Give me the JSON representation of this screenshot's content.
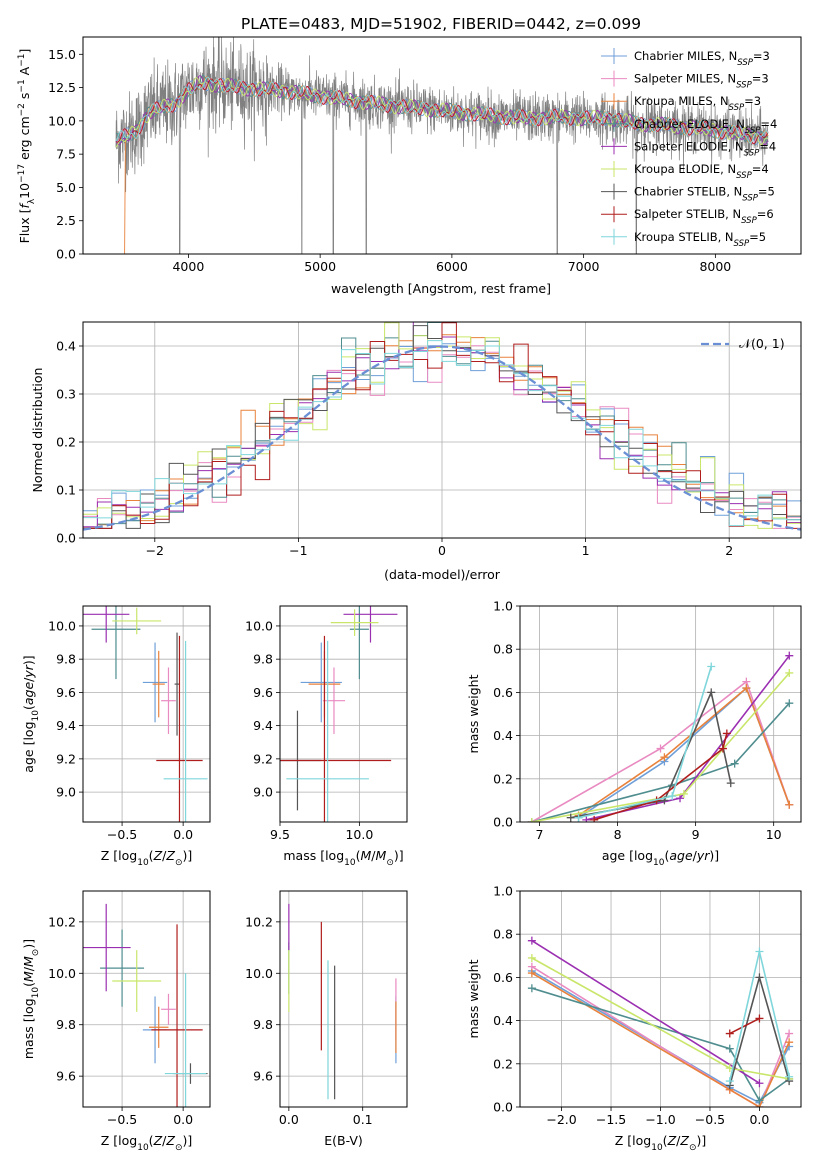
{
  "title": "PLATE=0483, MJD=51902, FIBERID=0442, z=0.099",
  "colors": [
    "#6f9fd8",
    "#e98ac1",
    "#e8823c",
    "#4f8d8f",
    "#9b2fb1",
    "#c9e66a",
    "#555555",
    "#b01d1d",
    "#7fd6db"
  ],
  "legend": [
    {
      "label": "Chabrier MILES, N_SSP=3"
    },
    {
      "label": "Salpeter MILES, N_SSP=3"
    },
    {
      "label": "Kroupa MILES, N_SSP=3"
    },
    {
      "label": "Chabrier ELODIE, N_SSP=4"
    },
    {
      "label": "Salpeter ELODIE, N_SSP=4"
    },
    {
      "label": "Kroupa ELODIE, N_SSP=4"
    },
    {
      "label": "Chabrier STELIB, N_SSP=5"
    },
    {
      "label": "Salpeter STELIB, N_SSP=6"
    },
    {
      "label": "Kroupa STELIB, N_SSP=5"
    }
  ],
  "gauss_label": "𝒩(0, 1)",
  "chart_data": [
    {
      "type": "line",
      "xlabel": "wavelength [Angstrom, rest frame]",
      "ylabel": "Flux [f_λ 10^-17 erg cm^-2 s^-1 A^-1]",
      "xlim": [
        3200,
        8650
      ],
      "ylim": [
        0,
        16.3
      ],
      "xticks": [
        4000,
        5000,
        6000,
        7000,
        8000
      ],
      "yticks": [
        0.0,
        2.5,
        5.0,
        7.5,
        10.0,
        12.5,
        15.0
      ],
      "continuum": [
        [
          3450,
          8.5
        ],
        [
          3600,
          9.2
        ],
        [
          3700,
          10.6
        ],
        [
          3800,
          11.0
        ],
        [
          3900,
          11.3
        ],
        [
          4000,
          12.3
        ],
        [
          4100,
          12.9
        ],
        [
          4300,
          12.6
        ],
        [
          4500,
          12.4
        ],
        [
          4700,
          12.3
        ],
        [
          4900,
          12.0
        ],
        [
          5200,
          11.6
        ],
        [
          5500,
          11.2
        ],
        [
          5800,
          10.9
        ],
        [
          6100,
          10.6
        ],
        [
          6400,
          10.3
        ],
        [
          6600,
          10.2
        ],
        [
          6800,
          10.3
        ],
        [
          7000,
          10.2
        ],
        [
          7200,
          10.2
        ],
        [
          7400,
          9.8
        ],
        [
          7600,
          9.7
        ],
        [
          7800,
          9.5
        ],
        [
          8000,
          9.3
        ],
        [
          8200,
          9.0
        ],
        [
          8400,
          8.7
        ]
      ],
      "absorption_lines": [
        3934,
        4861,
        5100,
        5350,
        6800,
        7400
      ]
    },
    {
      "type": "histogram",
      "xlabel": "(data-model)/error",
      "ylabel": "Normed distribution",
      "xlim": [
        -2.5,
        2.5
      ],
      "ylim": [
        0,
        0.45
      ],
      "xticks": [
        -2,
        -1,
        0,
        1,
        2
      ],
      "yticks": [
        0.0,
        0.1,
        0.2,
        0.3,
        0.4
      ],
      "bin_width": 0.1,
      "gaussian": {
        "mean": 0,
        "sigma": 1
      }
    },
    {
      "type": "errorbar",
      "xlabel": "Z [log10(Z/Z⊙)]",
      "ylabel": "age  [log10(age/yr)]",
      "xlim": [
        -0.82,
        0.22
      ],
      "ylim": [
        8.82,
        10.12
      ],
      "xticks": [
        -0.5,
        0.0
      ],
      "xticklabels": [
        "−0.5",
        "0.0"
      ],
      "yticks": [
        9.0,
        9.2,
        9.4,
        9.6,
        9.8,
        10.0
      ],
      "points": [
        {
          "x": -0.23,
          "xerr": 0.1,
          "y": 9.66,
          "yerr": 0.24
        },
        {
          "x": -0.12,
          "xerr": 0.06,
          "y": 9.55,
          "yerr": 0.2
        },
        {
          "x": -0.2,
          "xerr": 0.05,
          "y": 9.65,
          "yerr": 0.2
        },
        {
          "x": -0.55,
          "xerr": 0.2,
          "y": 9.98,
          "yerr": 0.3
        },
        {
          "x": -0.63,
          "xerr": 0.19,
          "y": 10.07,
          "yerr": 0.17
        },
        {
          "x": -0.38,
          "xerr": 0.2,
          "y": 10.03,
          "yerr": 0.08
        },
        {
          "x": -0.05,
          "xerr": 0.02,
          "y": 9.65,
          "yerr": 0.31
        },
        {
          "x": -0.03,
          "xerr": 0.19,
          "y": 9.19,
          "yerr": 0.75
        },
        {
          "x": 0.02,
          "xerr": 0.18,
          "y": 9.08,
          "yerr": 0.83
        }
      ]
    },
    {
      "type": "errorbar",
      "xlabel": "mass [log10(M/M⊙)]",
      "ylabel": "",
      "xlim": [
        9.5,
        10.3
      ],
      "ylim": [
        8.82,
        10.12
      ],
      "xticks": [
        9.5,
        10.0
      ],
      "yticks": [
        9.0,
        9.2,
        9.4,
        9.6,
        9.8,
        10.0
      ],
      "points": [
        {
          "x": 9.76,
          "xerr": 0.13,
          "y": 9.66,
          "yerr": 0.24
        },
        {
          "x": 9.84,
          "xerr": 0.07,
          "y": 9.55,
          "yerr": 0.2
        },
        {
          "x": 9.78,
          "xerr": 0.1,
          "y": 9.65,
          "yerr": 0.2
        },
        {
          "x": 10.0,
          "xerr": 0.06,
          "y": 9.98,
          "yerr": 0.3
        },
        {
          "x": 10.07,
          "xerr": 0.17,
          "y": 10.07,
          "yerr": 0.17
        },
        {
          "x": 9.97,
          "xerr": 0.15,
          "y": 10.02,
          "yerr": 0.08
        },
        {
          "x": 9.61,
          "xerr": 0.15,
          "y": 9.19,
          "yerr": 0.3
        },
        {
          "x": 9.78,
          "xerr": 0.42,
          "y": 9.19,
          "yerr": 0.75
        },
        {
          "x": 9.8,
          "xerr": 0.26,
          "y": 9.08,
          "yerr": 0.83
        }
      ]
    },
    {
      "type": "line",
      "xlabel": "age  [log10(age/yr)]",
      "ylabel": "mass weight",
      "xlim": [
        6.75,
        10.35
      ],
      "ylim": [
        0,
        1
      ],
      "xticks": [
        7,
        8,
        9,
        10
      ],
      "yticks": [
        0.0,
        0.2,
        0.4,
        0.6,
        0.8,
        1.0
      ],
      "series": [
        {
          "x": [
            7.5,
            8.6,
            9.65,
            10.2
          ],
          "y": [
            0.02,
            0.28,
            0.62,
            0.08
          ]
        },
        {
          "x": [
            6.9,
            8.55,
            9.65,
            10.2
          ],
          "y": [
            0.0,
            0.34,
            0.65,
            0.08
          ]
        },
        {
          "x": [
            7.5,
            8.6,
            9.65,
            10.2
          ],
          "y": [
            0.03,
            0.3,
            0.62,
            0.08
          ]
        },
        {
          "x": [
            6.9,
            8.7,
            9.5,
            10.2
          ],
          "y": [
            0.0,
            0.17,
            0.27,
            0.55
          ]
        },
        {
          "x": [
            7.6,
            8.8,
            10.2
          ],
          "y": [
            0.01,
            0.11,
            0.77
          ]
        },
        {
          "x": [
            6.9,
            8.85,
            10.2
          ],
          "y": [
            0.0,
            0.13,
            0.69
          ]
        },
        {
          "x": [
            7.4,
            8.6,
            9.2,
            9.45
          ],
          "y": [
            0.02,
            0.1,
            0.6,
            0.18
          ]
        },
        {
          "x": [
            7.7,
            8.5,
            9.35,
            9.4
          ],
          "y": [
            0.01,
            0.1,
            0.34,
            0.41
          ]
        },
        {
          "x": [
            7.5,
            8.7,
            9.2
          ],
          "y": [
            0.02,
            0.12,
            0.72
          ]
        }
      ]
    },
    {
      "type": "errorbar",
      "xlabel": "Z [log10(Z/Z⊙)]",
      "ylabel": "mass [log10(M/M⊙)]",
      "xlim": [
        -0.82,
        0.22
      ],
      "ylim": [
        9.48,
        10.32
      ],
      "xticks": [
        -0.5,
        0.0
      ],
      "xticklabels": [
        "−0.5",
        "0.0"
      ],
      "yticks": [
        9.6,
        9.8,
        10.0,
        10.2
      ],
      "points": [
        {
          "x": -0.23,
          "xerr": 0.1,
          "y": 9.78,
          "yerr": 0.13
        },
        {
          "x": -0.12,
          "xerr": 0.06,
          "y": 9.86,
          "yerr": 0.06
        },
        {
          "x": -0.2,
          "xerr": 0.08,
          "y": 9.79,
          "yerr": 0.08
        },
        {
          "x": -0.5,
          "xerr": 0.18,
          "y": 10.02,
          "yerr": 0.15
        },
        {
          "x": -0.63,
          "xerr": 0.2,
          "y": 10.1,
          "yerr": 0.17
        },
        {
          "x": -0.38,
          "xerr": 0.2,
          "y": 9.97,
          "yerr": 0.12
        },
        {
          "x": 0.06,
          "xerr": 0.14,
          "y": 9.61,
          "yerr": 0.04
        },
        {
          "x": -0.05,
          "xerr": 0.21,
          "y": 9.78,
          "yerr": 0.41
        },
        {
          "x": 0.02,
          "xerr": 0.17,
          "y": 9.61,
          "yerr": 0.39
        }
      ]
    },
    {
      "type": "errorbar",
      "xlabel": "E(B-V)",
      "ylabel": "",
      "xlim": [
        -0.012,
        0.16
      ],
      "ylim": [
        9.48,
        10.32
      ],
      "xticks": [
        0.0,
        0.1
      ],
      "yticks": [
        9.6,
        9.8,
        10.0,
        10.2
      ],
      "points": [
        {
          "x": 0.145,
          "xerr": 0,
          "y": 9.78,
          "yerr": 0.13
        },
        {
          "x": 0.145,
          "xerr": 0,
          "y": 9.86,
          "yerr": 0.12
        },
        {
          "x": 0.145,
          "xerr": 0,
          "y": 9.79,
          "yerr": 0.1
        },
        {
          "x": 0.0,
          "xerr": 0,
          "y": 10.02,
          "yerr": 0.1
        },
        {
          "x": 0.0,
          "xerr": 0,
          "y": 10.18,
          "yerr": 0.09
        },
        {
          "x": 0.0,
          "xerr": 0,
          "y": 9.97,
          "yerr": 0.12
        },
        {
          "x": 0.062,
          "xerr": 0,
          "y": 9.77,
          "yerr": 0.26
        },
        {
          "x": 0.044,
          "xerr": 0,
          "y": 9.95,
          "yerr": 0.25
        },
        {
          "x": 0.053,
          "xerr": 0,
          "y": 9.78,
          "yerr": 0.27
        }
      ]
    },
    {
      "type": "line",
      "xlabel": "Z [log10(Z/Z⊙)]",
      "ylabel": "mass weight",
      "xlim": [
        -2.42,
        0.42
      ],
      "ylim": [
        0,
        1
      ],
      "xticks": [
        -2.0,
        -1.5,
        -1.0,
        -0.5,
        0.0
      ],
      "xticklabels": [
        "−2.0",
        "−1.5",
        "−1.0",
        "−0.5",
        "0.0"
      ],
      "yticks": [
        0.0,
        0.2,
        0.4,
        0.6,
        0.8,
        1.0
      ],
      "series": [
        {
          "x": [
            -2.3,
            -0.3,
            0.0,
            0.3
          ],
          "y": [
            0.63,
            0.09,
            0.02,
            0.28
          ]
        },
        {
          "x": [
            -2.3,
            -0.3,
            0.0,
            0.3
          ],
          "y": [
            0.65,
            0.08,
            0.0,
            0.34
          ]
        },
        {
          "x": [
            -2.3,
            -0.3,
            0.0,
            0.3
          ],
          "y": [
            0.62,
            0.08,
            0.0,
            0.3
          ]
        },
        {
          "x": [
            -2.3,
            -0.3,
            0.0,
            0.3
          ],
          "y": [
            0.55,
            0.27,
            0.03,
            0.13
          ]
        },
        {
          "x": [
            -2.3,
            0.0
          ],
          "y": [
            0.77,
            0.11
          ]
        },
        {
          "x": [
            -2.3,
            -0.3,
            0.3
          ],
          "y": [
            0.69,
            0.18,
            0.13
          ]
        },
        {
          "x": [
            -0.3,
            0.0,
            0.3
          ],
          "y": [
            0.1,
            0.6,
            0.12
          ]
        },
        {
          "x": [
            -0.3,
            0.0
          ],
          "y": [
            0.34,
            0.41
          ]
        },
        {
          "x": [
            -0.3,
            0.0,
            0.3
          ],
          "y": [
            0.12,
            0.72,
            0.14
          ]
        }
      ]
    }
  ]
}
